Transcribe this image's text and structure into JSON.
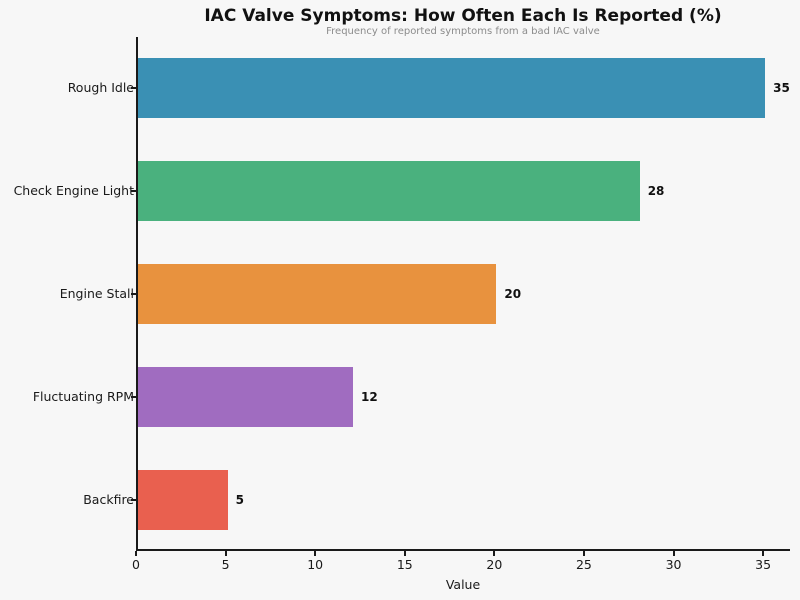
{
  "chart_data": {
    "type": "bar",
    "orientation": "horizontal",
    "title": "IAC Valve Symptoms: How Often Each Is Reported (%)",
    "subtitle": "Frequency of reported symptoms from a bad IAC valve",
    "categories": [
      "Rough Idle",
      "Check Engine Light",
      "Engine Stall",
      "Fluctuating RPM",
      "Backfire"
    ],
    "values": [
      35,
      28,
      20,
      12,
      5
    ],
    "value_labels": [
      "35",
      "28",
      "20",
      "12",
      "5"
    ],
    "bar_colors": [
      "#3a90b4",
      "#4ab17e",
      "#e8923e",
      "#a06cc0",
      "#e9604f"
    ],
    "xlabel": "Value",
    "ylabel": "",
    "xlim": [
      0,
      36.5
    ],
    "xticks": [
      0,
      5,
      10,
      15,
      20,
      25,
      30,
      35
    ],
    "grid": false,
    "legend": null,
    "colors": {
      "background": "#f7f7f7",
      "title_text": "#111111",
      "subtitle_text": "#8c8c8c",
      "axis_spine": "#1a1a1a",
      "tick_text": "#1a1a1a",
      "value_label_text": "#111111"
    }
  }
}
